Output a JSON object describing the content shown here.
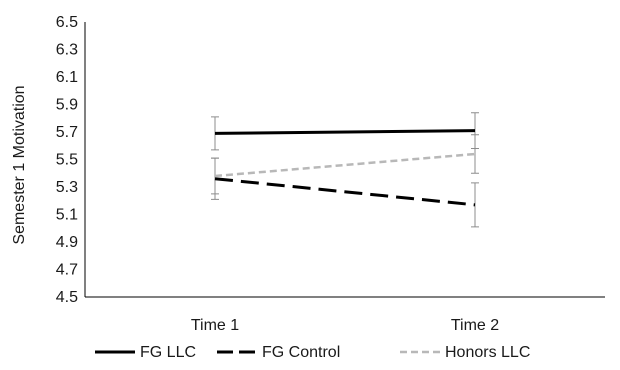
{
  "chart_data": {
    "type": "line",
    "x": [
      "Time 1",
      "Time 2"
    ],
    "ylabel": "Semester 1 Motivation",
    "xlabel": "",
    "ylim": [
      4.5,
      6.5
    ],
    "y_ticks": [
      "4.5",
      "4.7",
      "4.9",
      "5.1",
      "5.3",
      "5.5",
      "5.7",
      "5.9",
      "6.1",
      "6.3",
      "6.5"
    ],
    "grid": false,
    "legend_position": "bottom",
    "series": [
      {
        "name": "FG LLC",
        "values": [
          5.69,
          5.71
        ],
        "error": [
          0.12,
          0.13
        ],
        "color": "#000000",
        "style": "solid"
      },
      {
        "name": "FG Control",
        "values": [
          5.36,
          5.17
        ],
        "error": [
          0.15,
          0.16
        ],
        "color": "#000000",
        "style": "long-dash"
      },
      {
        "name": "Honors LLC",
        "values": [
          5.38,
          5.54
        ],
        "error": [
          0.13,
          0.14
        ],
        "color": "#b8b8b8",
        "style": "short-dash"
      }
    ],
    "legend": [
      {
        "label": "FG LLC"
      },
      {
        "label": "FG Control"
      },
      {
        "label": "Honors LLC"
      }
    ]
  }
}
